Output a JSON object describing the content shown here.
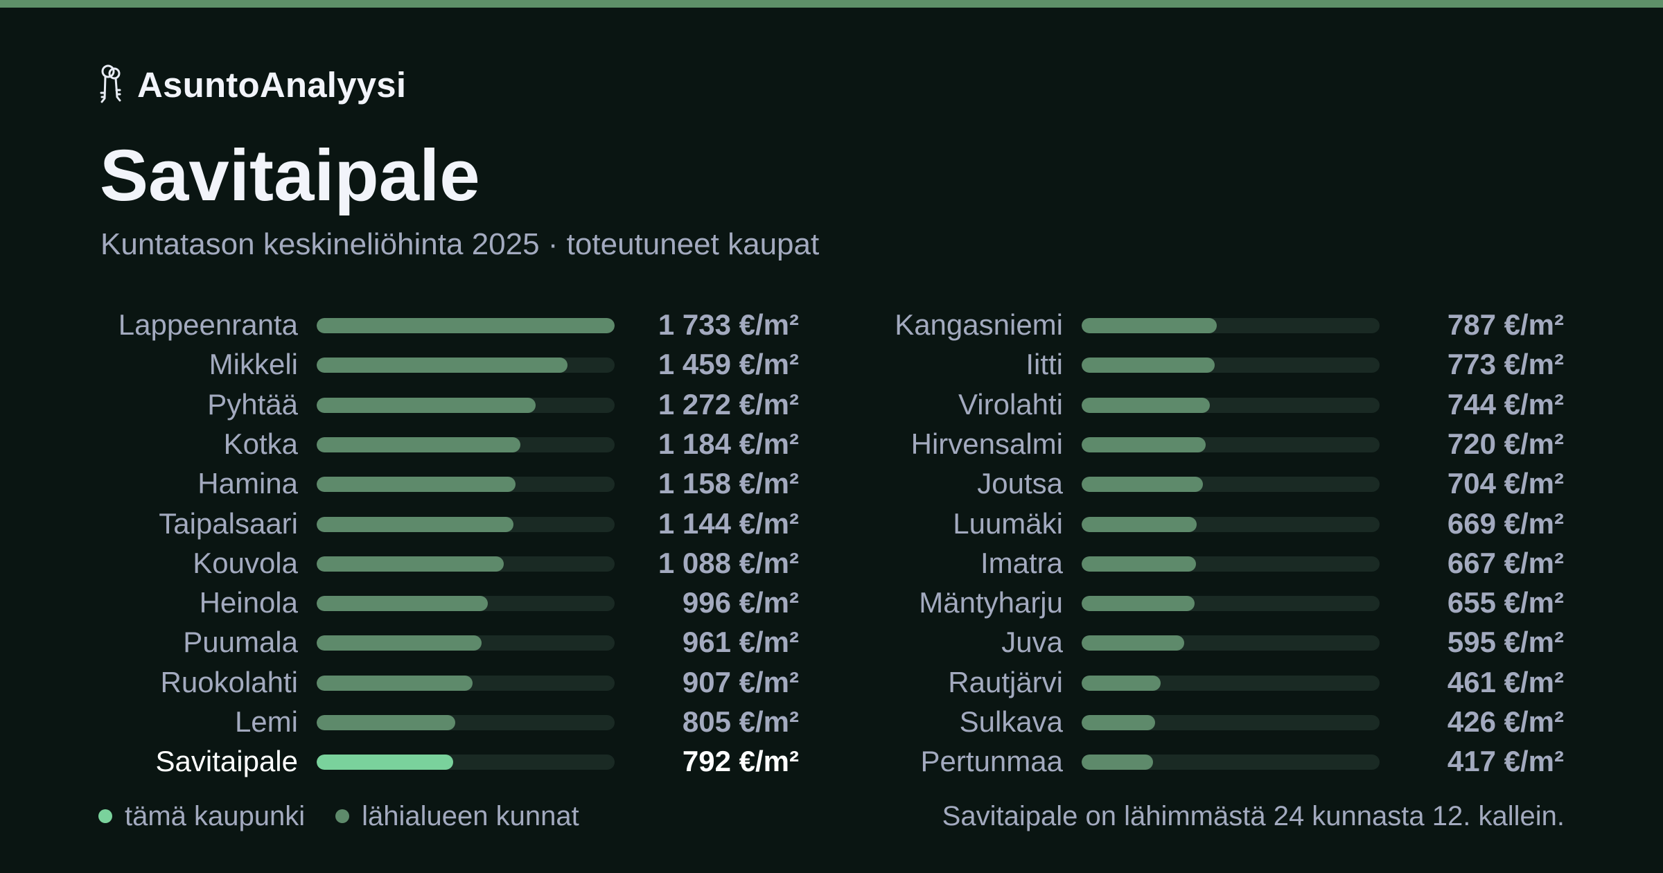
{
  "brand": {
    "name": "AsuntoAnalyysi",
    "icon": "keys-icon"
  },
  "title": "Savitaipale",
  "subtitle": "Kuntatason keskineliöhinta 2025 · toteutuneet kaupat",
  "colors": {
    "background": "#0a1512",
    "accent": "#5e9069",
    "bar_nearby": "#5e8a6b",
    "bar_highlight": "#7ad29c",
    "track": "#1a2a24",
    "text_muted": "#a3aabf",
    "text_strong": "#ffffff"
  },
  "chart_data": {
    "type": "bar",
    "orientation": "horizontal",
    "unit": "€/m²",
    "max_value": 1733,
    "highlight": "Savitaipale",
    "left": [
      {
        "name": "Lappeenranta",
        "value": 1733,
        "label": "1 733 €/m²"
      },
      {
        "name": "Mikkeli",
        "value": 1459,
        "label": "1 459 €/m²"
      },
      {
        "name": "Pyhtää",
        "value": 1272,
        "label": "1 272 €/m²"
      },
      {
        "name": "Kotka",
        "value": 1184,
        "label": "1 184 €/m²"
      },
      {
        "name": "Hamina",
        "value": 1158,
        "label": "1 158 €/m²"
      },
      {
        "name": "Taipalsaari",
        "value": 1144,
        "label": "1 144 €/m²"
      },
      {
        "name": "Kouvola",
        "value": 1088,
        "label": "1 088 €/m²"
      },
      {
        "name": "Heinola",
        "value": 996,
        "label": "996 €/m²"
      },
      {
        "name": "Puumala",
        "value": 961,
        "label": "961 €/m²"
      },
      {
        "name": "Ruokolahti",
        "value": 907,
        "label": "907 €/m²"
      },
      {
        "name": "Lemi",
        "value": 805,
        "label": "805 €/m²"
      },
      {
        "name": "Savitaipale",
        "value": 792,
        "label": "792 €/m²"
      }
    ],
    "right": [
      {
        "name": "Kangasniemi",
        "value": 787,
        "label": "787 €/m²"
      },
      {
        "name": "Iitti",
        "value": 773,
        "label": "773 €/m²"
      },
      {
        "name": "Virolahti",
        "value": 744,
        "label": "744 €/m²"
      },
      {
        "name": "Hirvensalmi",
        "value": 720,
        "label": "720 €/m²"
      },
      {
        "name": "Joutsa",
        "value": 704,
        "label": "704 €/m²"
      },
      {
        "name": "Luumäki",
        "value": 669,
        "label": "669 €/m²"
      },
      {
        "name": "Imatra",
        "value": 667,
        "label": "667 €/m²"
      },
      {
        "name": "Mäntyharju",
        "value": 655,
        "label": "655 €/m²"
      },
      {
        "name": "Juva",
        "value": 595,
        "label": "595 €/m²"
      },
      {
        "name": "Rautjärvi",
        "value": 461,
        "label": "461 €/m²"
      },
      {
        "name": "Sulkava",
        "value": 426,
        "label": "426 €/m²"
      },
      {
        "name": "Pertunmaa",
        "value": 417,
        "label": "417 €/m²"
      }
    ]
  },
  "legend": {
    "this_city": "tämä kaupunki",
    "nearby": "lähialueen kunnat"
  },
  "footnote": "Savitaipale on lähimmästä 24 kunnasta 12. kallein."
}
